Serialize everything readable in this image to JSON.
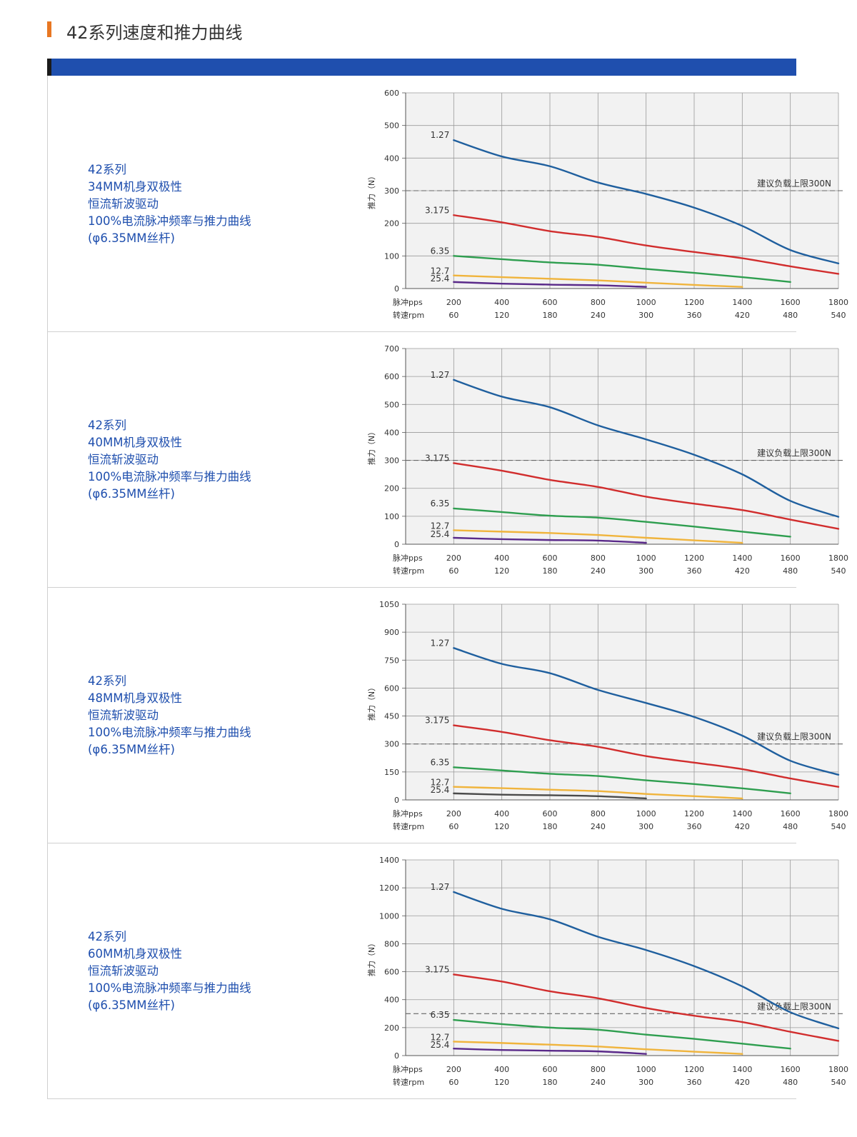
{
  "page": {
    "title": "42系列速度和推力曲线"
  },
  "colors": {
    "accent": "#e87722",
    "band": "#1f4fae",
    "text_blue": "#1f4fae",
    "c127": "#1f5f9e",
    "c3175": "#d12d2d",
    "c635": "#2e9e4f",
    "c127b": "#f0b43c",
    "c254": "#5a2a8a",
    "c254alt": "#4a4a4a"
  },
  "rows": [
    {
      "desc": [
        "42系列",
        "34MM机身双极性",
        "恒流斩波驱动",
        "100%电流脉冲频率与推力曲线",
        "(φ6.35MM丝杆)"
      ],
      "chart_data": {
        "type": "line",
        "ylabel": "推力（N）",
        "ylim": [
          0,
          600
        ],
        "yticks": [
          0,
          100,
          200,
          300,
          400,
          500,
          600
        ],
        "x_pps": [
          200,
          400,
          600,
          800,
          1000,
          1200,
          1400,
          1600,
          1800
        ],
        "x_rpm": [
          60,
          120,
          180,
          240,
          300,
          360,
          420,
          480,
          540
        ],
        "x_axis_labels": [
          "脉冲pps",
          "转速rpm"
        ],
        "limit": {
          "value": 300,
          "label": "建议负载上限300N"
        },
        "series": [
          {
            "name": "1.27",
            "color": "#1f5f9e",
            "x": [
              200,
              400,
              600,
              800,
              1000,
              1200,
              1400,
              1600,
              1800
            ],
            "y": [
              455,
              405,
              375,
              325,
              290,
              248,
              192,
              118,
              77
            ]
          },
          {
            "name": "3.175",
            "color": "#d12d2d",
            "x": [
              200,
              400,
              600,
              800,
              1000,
              1200,
              1400,
              1600,
              1800
            ],
            "y": [
              225,
              203,
              176,
              158,
              132,
              112,
              93,
              68,
              45
            ]
          },
          {
            "name": "6.35",
            "color": "#2e9e4f",
            "x": [
              200,
              400,
              600,
              800,
              1000,
              1200,
              1400,
              1600
            ],
            "y": [
              100,
              90,
              80,
              73,
              60,
              48,
              35,
              20
            ]
          },
          {
            "name": "12.7",
            "color": "#f0b43c",
            "x": [
              200,
              400,
              600,
              800,
              1000,
              1200,
              1400
            ],
            "y": [
              40,
              35,
              30,
              25,
              18,
              11,
              5
            ]
          },
          {
            "name": "25.4",
            "color": "#5a2a8a",
            "x": [
              200,
              400,
              600,
              800,
              1000
            ],
            "y": [
              20,
              15,
              12,
              10,
              5
            ]
          }
        ]
      }
    },
    {
      "desc": [
        "42系列",
        "40MM机身双极性",
        "恒流斩波驱动",
        "100%电流脉冲频率与推力曲线",
        "(φ6.35MM丝杆)"
      ],
      "chart_data": {
        "type": "line",
        "ylabel": "推力（N）",
        "ylim": [
          0,
          700
        ],
        "yticks": [
          0,
          100,
          200,
          300,
          400,
          500,
          600,
          700
        ],
        "x_pps": [
          200,
          400,
          600,
          800,
          1000,
          1200,
          1400,
          1600,
          1800
        ],
        "x_rpm": [
          60,
          120,
          180,
          240,
          300,
          360,
          420,
          480,
          540
        ],
        "x_axis_labels": [
          "脉冲pps",
          "转速rpm"
        ],
        "limit": {
          "value": 300,
          "label": "建议负载上限300N"
        },
        "series": [
          {
            "name": "1.27",
            "color": "#1f5f9e",
            "x": [
              200,
              400,
              600,
              800,
              1000,
              1200,
              1400,
              1600,
              1800
            ],
            "y": [
              588,
              528,
              490,
              425,
              375,
              320,
              250,
              155,
              98
            ]
          },
          {
            "name": "3.175",
            "color": "#d12d2d",
            "x": [
              200,
              400,
              600,
              800,
              1000,
              1200,
              1400,
              1600,
              1800
            ],
            "y": [
              290,
              263,
              230,
              205,
              170,
              145,
              122,
              88,
              55
            ]
          },
          {
            "name": "6.35",
            "color": "#2e9e4f",
            "x": [
              200,
              400,
              600,
              800,
              1000,
              1200,
              1400,
              1600
            ],
            "y": [
              128,
              115,
              102,
              95,
              80,
              63,
              45,
              27
            ]
          },
          {
            "name": "12.7",
            "color": "#f0b43c",
            "x": [
              200,
              400,
              600,
              800,
              1000,
              1200,
              1400
            ],
            "y": [
              50,
              45,
              40,
              33,
              23,
              14,
              5
            ]
          },
          {
            "name": "25.4",
            "color": "#5a2a8a",
            "x": [
              200,
              400,
              600,
              800,
              1000
            ],
            "y": [
              23,
              18,
              15,
              13,
              5
            ]
          }
        ]
      }
    },
    {
      "desc": [
        "42系列",
        "48MM机身双极性",
        "恒流斩波驱动",
        "100%电流脉冲频率与推力曲线",
        "(φ6.35MM丝杆)"
      ],
      "chart_data": {
        "type": "line",
        "ylabel": "推力（N）",
        "ylim": [
          0,
          1050
        ],
        "yticks": [
          0,
          150,
          300,
          450,
          600,
          750,
          900,
          1050
        ],
        "x_pps": [
          200,
          400,
          600,
          800,
          1000,
          1200,
          1400,
          1600,
          1800
        ],
        "x_rpm": [
          60,
          120,
          180,
          240,
          300,
          360,
          420,
          480,
          540
        ],
        "x_axis_labels": [
          "脉冲pps",
          "转速rpm"
        ],
        "limit": {
          "value": 300,
          "label": "建议负载上限300N"
        },
        "series": [
          {
            "name": "1.27",
            "color": "#1f5f9e",
            "x": [
              200,
              400,
              600,
              800,
              1000,
              1200,
              1400,
              1600,
              1800
            ],
            "y": [
              815,
              730,
              680,
              590,
              520,
              445,
              345,
              210,
              135
            ]
          },
          {
            "name": "3.175",
            "color": "#d12d2d",
            "x": [
              200,
              400,
              600,
              800,
              1000,
              1200,
              1400,
              1600,
              1800
            ],
            "y": [
              400,
              365,
              320,
              285,
              235,
              200,
              165,
              115,
              70
            ]
          },
          {
            "name": "6.35",
            "color": "#2e9e4f",
            "x": [
              200,
              400,
              600,
              800,
              1000,
              1200,
              1400,
              1600
            ],
            "y": [
              175,
              158,
              140,
              128,
              105,
              85,
              62,
              35
            ]
          },
          {
            "name": "12.7",
            "color": "#f0b43c",
            "x": [
              200,
              400,
              600,
              800,
              1000,
              1200,
              1400
            ],
            "y": [
              70,
              63,
              55,
              47,
              32,
              20,
              8
            ]
          },
          {
            "name": "25.4",
            "color": "#4a4a4a",
            "x": [
              200,
              400,
              600,
              800,
              1000
            ],
            "y": [
              35,
              28,
              25,
              20,
              8
            ]
          }
        ]
      }
    },
    {
      "desc": [
        "42系列",
        "60MM机身双极性",
        "恒流斩波驱动",
        "100%电流脉冲频率与推力曲线",
        "(φ6.35MM丝杆)"
      ],
      "chart_data": {
        "type": "line",
        "ylabel": "推力（N）",
        "ylim": [
          0,
          1400
        ],
        "yticks": [
          0,
          200,
          400,
          600,
          800,
          1000,
          1200,
          1400
        ],
        "x_pps": [
          200,
          400,
          600,
          800,
          1000,
          1200,
          1400,
          1600,
          1800
        ],
        "x_rpm": [
          60,
          120,
          180,
          240,
          300,
          360,
          420,
          480,
          540
        ],
        "x_axis_labels": [
          "脉冲pps",
          "转速rpm"
        ],
        "limit": {
          "value": 300,
          "label": "建议负载上限300N"
        },
        "series": [
          {
            "name": "1.27",
            "color": "#1f5f9e",
            "x": [
              200,
              400,
              600,
              800,
              1000,
              1200,
              1400,
              1600,
              1800
            ],
            "y": [
              1170,
              1050,
              975,
              850,
              755,
              640,
              495,
              310,
              195
            ]
          },
          {
            "name": "3.175",
            "color": "#d12d2d",
            "x": [
              200,
              400,
              600,
              800,
              1000,
              1200,
              1400,
              1600,
              1800
            ],
            "y": [
              580,
              530,
              460,
              410,
              340,
              285,
              240,
              170,
              105
            ]
          },
          {
            "name": "6.35",
            "color": "#2e9e4f",
            "x": [
              200,
              400,
              600,
              800,
              1000,
              1200,
              1400,
              1600
            ],
            "y": [
              255,
              225,
              200,
              185,
              150,
              120,
              85,
              50
            ]
          },
          {
            "name": "12.7",
            "color": "#f0b43c",
            "x": [
              200,
              400,
              600,
              800,
              1000,
              1200,
              1400
            ],
            "y": [
              100,
              90,
              78,
              65,
              45,
              28,
              12
            ]
          },
          {
            "name": "25.4",
            "color": "#5a2a8a",
            "x": [
              200,
              400,
              600,
              800,
              1000
            ],
            "y": [
              50,
              40,
              35,
              30,
              12
            ]
          }
        ]
      }
    }
  ]
}
